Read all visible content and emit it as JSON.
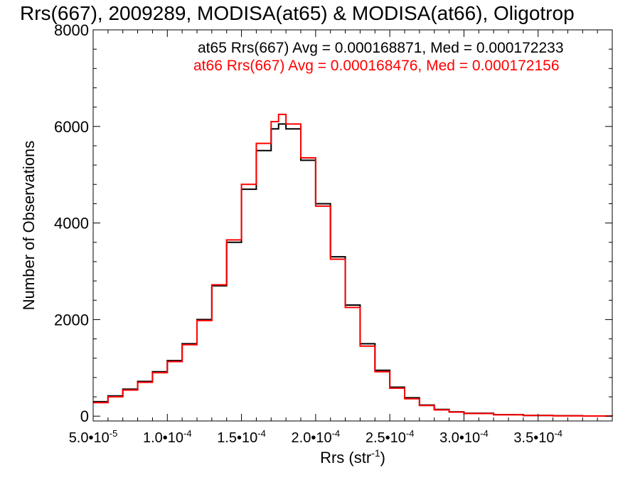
{
  "chart_data": {
    "type": "line",
    "step": true,
    "title": "Rrs(667), 2009289, MODISA(at65) & MODISA(at66), Oligotrop",
    "xlabel": "Rrs (str",
    "xlabel_sup": "-1",
    "xlabel_suffix": ")",
    "ylabel": "Number of Observations",
    "xlim": [
      5e-05,
      0.0004
    ],
    "ylim": [
      -100,
      8000
    ],
    "grid": false,
    "x_ticks": [
      {
        "value": 5e-05,
        "mant": "5.0",
        "exp": "-5"
      },
      {
        "value": 0.0001,
        "mant": "1.0",
        "exp": "-4"
      },
      {
        "value": 0.00015,
        "mant": "1.5",
        "exp": "-4"
      },
      {
        "value": 0.0002,
        "mant": "2.0",
        "exp": "-4"
      },
      {
        "value": 0.00025,
        "mant": "2.5",
        "exp": "-4"
      },
      {
        "value": 0.0003,
        "mant": "3.0",
        "exp": "-4"
      },
      {
        "value": 0.00035,
        "mant": "3.5",
        "exp": "-4"
      }
    ],
    "y_ticks": [
      0,
      2000,
      4000,
      6000,
      8000
    ],
    "x": [
      5e-05,
      6e-05,
      7e-05,
      8e-05,
      9e-05,
      0.0001,
      0.00011,
      0.00012,
      0.00013,
      0.00014,
      0.00015,
      0.00016,
      0.00017,
      0.000175,
      0.00018,
      0.00019,
      0.0002,
      0.00021,
      0.00022,
      0.00023,
      0.00024,
      0.00025,
      0.00026,
      0.00027,
      0.00028,
      0.00029,
      0.0003,
      0.00032,
      0.00034,
      0.00036,
      0.00038,
      0.0004
    ],
    "series": [
      {
        "name": "at65 Rrs(667) Avg = 0.000168871, Med = 0.000172233",
        "color": "#000000",
        "values": [
          300,
          420,
          560,
          720,
          920,
          1150,
          1500,
          2000,
          2700,
          3600,
          4700,
          5500,
          5950,
          6050,
          5950,
          5300,
          4400,
          3300,
          2300,
          1500,
          950,
          600,
          380,
          230,
          140,
          90,
          60,
          30,
          15,
          8,
          4,
          2
        ]
      },
      {
        "name": "at66 Rrs(667) Avg = 0.000168476, Med = 0.000172156",
        "color": "#ff0000",
        "values": [
          280,
          400,
          540,
          700,
          900,
          1130,
          1480,
          1980,
          2720,
          3650,
          4800,
          5650,
          6100,
          6250,
          6050,
          5350,
          4350,
          3250,
          2250,
          1450,
          920,
          580,
          360,
          220,
          130,
          85,
          55,
          28,
          14,
          7,
          3,
          2
        ]
      }
    ]
  }
}
